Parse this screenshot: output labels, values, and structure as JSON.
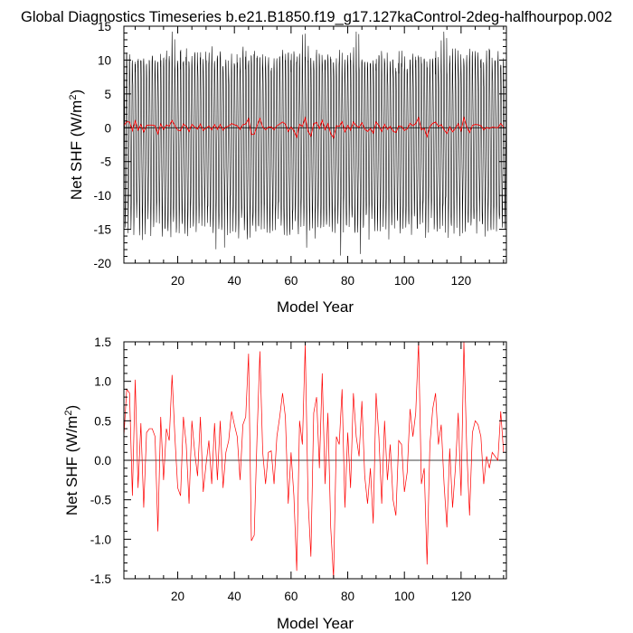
{
  "title": "Global Diagnostics Timeseries b.e21.B1850.f19_g17.127kaControl-2deg-halfhourpop.002",
  "colors": {
    "monthly": "#000000",
    "annual": "#ff0000",
    "zero_line": "#000000"
  },
  "chart_data": [
    {
      "type": "line",
      "panel": "top",
      "xlabel": "Model Year",
      "ylabel": "Net SHF (W/m",
      "ylabel_sup": "2",
      "ylabel_close": ")",
      "xlim": [
        1,
        136
      ],
      "ylim": [
        -20,
        15
      ],
      "xticks": [
        20,
        40,
        60,
        80,
        100,
        120
      ],
      "yticks": [
        15,
        10,
        5,
        0,
        -5,
        -10,
        -15,
        -20
      ],
      "monthly_envelope": {
        "typical_max": 10,
        "typical_min": -15,
        "extreme_max": 14.2,
        "extreme_min": -19
      },
      "series": [
        {
          "kind": "monthly_mean",
          "color": "#000000",
          "summary": "seasonal cycle, roughly -16 to +10 each year"
        },
        {
          "kind": "annual_mean",
          "color": "#ff0000",
          "ref": "annual_mean"
        }
      ]
    },
    {
      "type": "line",
      "panel": "bottom",
      "xlabel": "Model Year",
      "ylabel": "Net SHF (W/m",
      "ylabel_sup": "2",
      "ylabel_close": ")",
      "xlim": [
        1,
        136
      ],
      "ylim": [
        -1.5,
        1.5
      ],
      "xticks": [
        20,
        40,
        60,
        80,
        100,
        120
      ],
      "yticks": [
        1.5,
        1.0,
        0.5,
        0.0,
        -0.5,
        -1.0,
        -1.5
      ],
      "ytick_labels": [
        "1.5",
        "1.0",
        "0.5",
        "0.0",
        "-0.5",
        "-1.0",
        "-1.5"
      ],
      "series": [
        {
          "kind": "annual_mean",
          "color": "#ff0000",
          "ref": "annual_mean"
        }
      ]
    }
  ],
  "annual_mean": [
    0.3,
    0.9,
    0.85,
    -0.45,
    1.02,
    -0.35,
    0.47,
    -0.6,
    0.35,
    0.4,
    0.4,
    0.3,
    -0.9,
    0.55,
    -0.25,
    0.4,
    0.25,
    1.08,
    0.3,
    -0.35,
    -0.45,
    0.55,
    0.2,
    -0.55,
    0.5,
    0.1,
    -0.2,
    0.55,
    -0.4,
    -0.05,
    0.25,
    -0.3,
    0.47,
    -0.25,
    0.5,
    -0.35,
    0.1,
    0.25,
    0.62,
    0.45,
    0.3,
    -0.25,
    0.45,
    0.55,
    1.35,
    -1.02,
    -0.95,
    0.3,
    1.38,
    0.1,
    -0.3,
    0.1,
    0.12,
    -0.3,
    0.3,
    0.55,
    0.85,
    0.55,
    -0.55,
    0.1,
    -0.45,
    -1.4,
    0.5,
    0.2,
    1.47,
    -0.5,
    -1.22,
    0.6,
    0.8,
    -0.1,
    1.1,
    -0.3,
    0.6,
    -0.85,
    -1.5,
    0.3,
    0.2,
    0.9,
    -0.6,
    0.35,
    -0.35,
    0.85,
    0.3,
    0.05,
    0.75,
    -0.2,
    -0.55,
    -0.1,
    -0.8,
    0.85,
    0.3,
    -0.55,
    0.5,
    -0.25,
    0.2,
    -0.5,
    -0.7,
    0.25,
    0.2,
    -0.4,
    -0.15,
    0.65,
    0.3,
    0.6,
    1.5,
    -0.3,
    -0.1,
    -1.32,
    0.2,
    0.65,
    0.85,
    0.2,
    0.45,
    -0.3,
    -0.85,
    0.15,
    -0.6,
    -0.1,
    0.6,
    -0.45,
    1.5,
    0.15,
    -0.7,
    0.35,
    0.5,
    0.45,
    0.3,
    -0.3,
    0.05,
    -0.1,
    0.1,
    0.05,
    0.0,
    0.62,
    0.1
  ]
}
